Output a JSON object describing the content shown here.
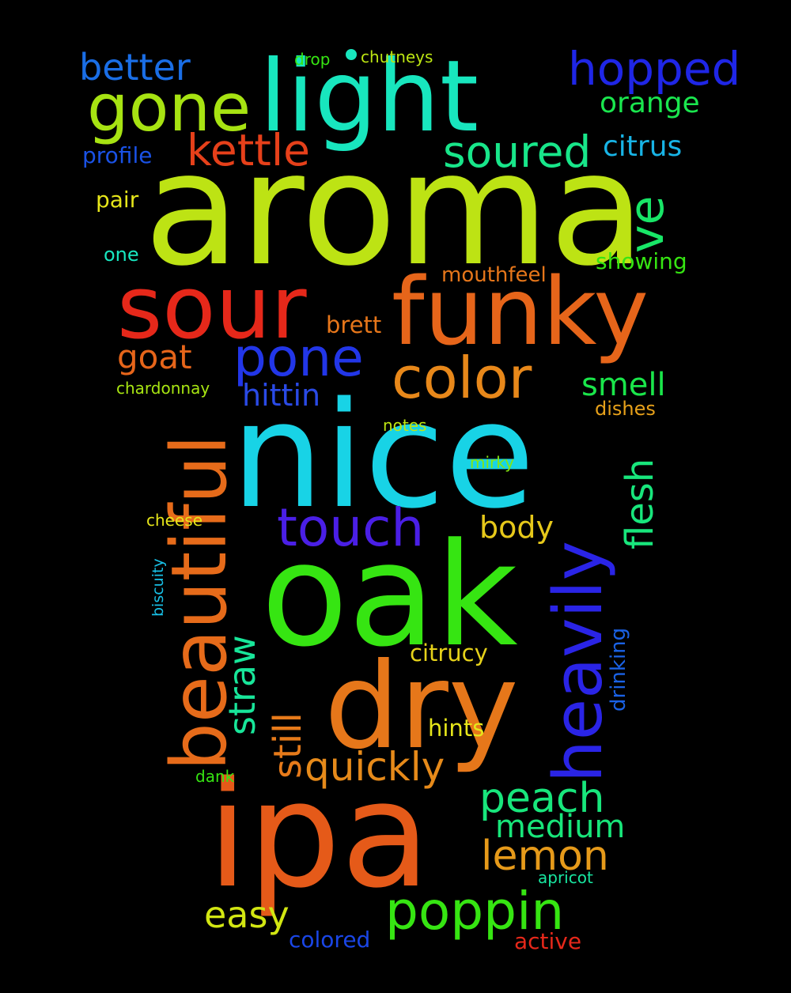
{
  "background": "#000000",
  "words": [
    {
      "text": "aroma",
      "color": "#bde314"
    },
    {
      "text": "nice",
      "color": "#18d3e6"
    },
    {
      "text": "oak",
      "color": "#36e512"
    },
    {
      "text": "ipa",
      "color": "#e55a19"
    },
    {
      "text": "dry",
      "color": "#e6771a"
    },
    {
      "text": "light",
      "color": "#18e6be"
    },
    {
      "text": "funky",
      "color": "#e6651a"
    },
    {
      "text": "sour",
      "color": "#e6281a"
    },
    {
      "text": "beautiful",
      "color": "#e66b1a"
    },
    {
      "text": "heavily",
      "color": "#2a24e6"
    },
    {
      "text": "gone",
      "color": "#a7e312"
    },
    {
      "text": "color",
      "color": "#e8881a"
    },
    {
      "text": "pone",
      "color": "#2236e8"
    },
    {
      "text": "touch",
      "color": "#4a1fe6"
    },
    {
      "text": "poppin",
      "color": "#36e512"
    },
    {
      "text": "hopped",
      "color": "#1f26e6"
    },
    {
      "text": "kettle",
      "color": "#e6401a"
    },
    {
      "text": "soured",
      "color": "#18e68a"
    },
    {
      "text": "better",
      "color": "#1a6ee6"
    },
    {
      "text": "quickly",
      "color": "#e68a1a"
    },
    {
      "text": "peach",
      "color": "#18e67c"
    },
    {
      "text": "lemon",
      "color": "#e69a1a"
    },
    {
      "text": "ve",
      "color": "#18e667"
    },
    {
      "text": "flesh",
      "color": "#18e67c"
    },
    {
      "text": "still",
      "color": "#e67a1a"
    },
    {
      "text": "straw",
      "color": "#18e69a"
    },
    {
      "text": "medium",
      "color": "#18e67a"
    },
    {
      "text": "goat",
      "color": "#e6651a"
    },
    {
      "text": "hittin",
      "color": "#2a4ae6"
    },
    {
      "text": "smell",
      "color": "#1ae64a"
    },
    {
      "text": "easy",
      "color": "#d2e612"
    },
    {
      "text": "body",
      "color": "#e6c81a"
    },
    {
      "text": "citrus",
      "color": "#18b4e6"
    },
    {
      "text": "orange",
      "color": "#1ae64e"
    },
    {
      "text": "citrucy",
      "color": "#e6d21a"
    },
    {
      "text": "hints",
      "color": "#e6e61a"
    },
    {
      "text": "brett",
      "color": "#e6761a"
    },
    {
      "text": "mouthfeel",
      "color": "#e6761a"
    },
    {
      "text": "showing",
      "color": "#36e512"
    },
    {
      "text": "profile",
      "color": "#1a52e6"
    },
    {
      "text": "colored",
      "color": "#1a46e6"
    },
    {
      "text": "active",
      "color": "#e6281a"
    },
    {
      "text": "drinking",
      "color": "#1a62e6"
    },
    {
      "text": "pair",
      "color": "#e6e61a"
    },
    {
      "text": "one",
      "color": "#18e6c0"
    },
    {
      "text": "dishes",
      "color": "#e6a01a"
    },
    {
      "text": "chardonnay",
      "color": "#a8e612"
    },
    {
      "text": "notes",
      "color": "#bee612"
    },
    {
      "text": "mirky",
      "color": "#84e612"
    },
    {
      "text": "cheese",
      "color": "#e6e61a"
    },
    {
      "text": "biscuity",
      "color": "#18c0e6"
    },
    {
      "text": "apricot",
      "color": "#18e6a0"
    },
    {
      "text": "dank",
      "color": "#36e512"
    },
    {
      "text": "drop",
      "color": "#36e512"
    },
    {
      "text": "chutneys",
      "color": "#bde612"
    }
  ]
}
